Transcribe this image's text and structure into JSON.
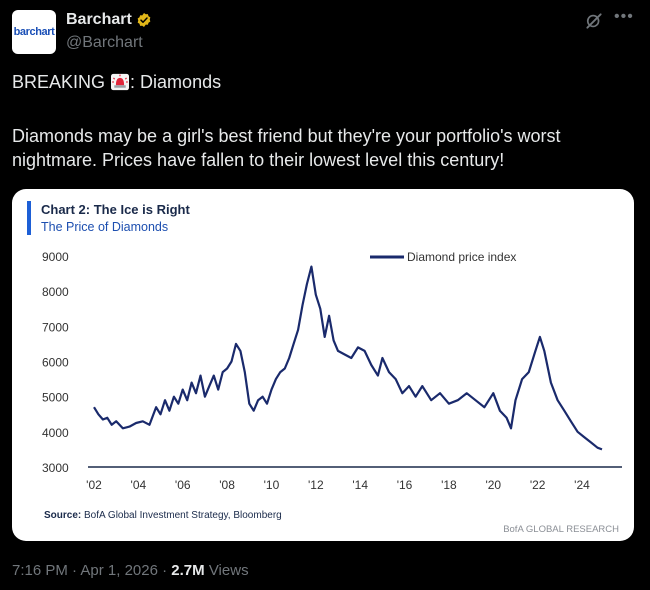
{
  "author": {
    "name": "Barchart",
    "handle": "@Barchart",
    "avatar_text": "barchart",
    "verified": true,
    "verified_color": "#e2b719"
  },
  "post": {
    "line1_prefix": "BREAKING",
    "line1_suffix": ": Diamonds",
    "body": "Diamonds may be a girl's best friend but they're your portfolio's worst nightmare.  Prices have fallen to their lowest level this century!",
    "siren_icon": "rotating-light-emoji"
  },
  "meta": {
    "time": "7:16 PM",
    "date": "Apr 1, 2026",
    "views": "2.7M",
    "views_label": "Views"
  },
  "icons": {
    "grok": "grok-icon",
    "more": "more-icon"
  },
  "chart_data": {
    "type": "line",
    "title": "Chart 2: The Ice is Right",
    "subtitle": "The Price of Diamonds",
    "accent_color": "#1d5fd6",
    "line_color": "#1a2a6c",
    "ylim": [
      3000,
      9000
    ],
    "y_ticks": [
      "9000",
      "8000",
      "7000",
      "6000",
      "5000",
      "4000",
      "3000"
    ],
    "y_tick_values": [
      9000,
      8000,
      7000,
      6000,
      5000,
      4000,
      3000
    ],
    "x_ticks": [
      "'02",
      "'04",
      "'06",
      "'08",
      "'10",
      "'12",
      "'14",
      "'16",
      "'18",
      "'20",
      "'22",
      "'24"
    ],
    "x_tick_values": [
      2002,
      2004,
      2006,
      2008,
      2010,
      2012,
      2014,
      2016,
      2018,
      2020,
      2022,
      2024
    ],
    "xlim": [
      2002,
      2026
    ],
    "source_label": "Source:",
    "source": "BofA Global Investment Strategy, Bloomberg",
    "watermark": "BofA GLOBAL RESEARCH",
    "legend_position": "top-right",
    "series": [
      {
        "name": "Diamond price index",
        "x": [
          2002.0,
          2002.2,
          2002.4,
          2002.6,
          2002.8,
          2003.0,
          2003.3,
          2003.6,
          2003.9,
          2004.2,
          2004.5,
          2004.8,
          2005.0,
          2005.2,
          2005.4,
          2005.6,
          2005.8,
          2006.0,
          2006.2,
          2006.4,
          2006.6,
          2006.8,
          2007.0,
          2007.2,
          2007.4,
          2007.6,
          2007.8,
          2008.0,
          2008.2,
          2008.4,
          2008.6,
          2008.8,
          2009.0,
          2009.2,
          2009.4,
          2009.6,
          2009.8,
          2010.0,
          2010.2,
          2010.4,
          2010.6,
          2010.8,
          2011.0,
          2011.2,
          2011.4,
          2011.6,
          2011.8,
          2012.0,
          2012.2,
          2012.4,
          2012.6,
          2012.8,
          2013.0,
          2013.3,
          2013.6,
          2013.9,
          2014.2,
          2014.5,
          2014.8,
          2015.0,
          2015.3,
          2015.6,
          2015.9,
          2016.2,
          2016.5,
          2016.8,
          2017.2,
          2017.6,
          2018.0,
          2018.4,
          2018.8,
          2019.2,
          2019.6,
          2020.0,
          2020.3,
          2020.6,
          2020.8,
          2021.0,
          2021.3,
          2021.6,
          2021.9,
          2022.1,
          2022.3,
          2022.6,
          2022.9,
          2023.2,
          2023.5,
          2023.8,
          2024.1,
          2024.4,
          2024.7,
          2024.9
        ],
        "values": [
          4700,
          4500,
          4350,
          4400,
          4200,
          4300,
          4100,
          4150,
          4250,
          4300,
          4200,
          4700,
          4500,
          4900,
          4600,
          5000,
          4800,
          5200,
          4900,
          5400,
          5100,
          5600,
          5000,
          5300,
          5600,
          5200,
          5700,
          5800,
          6000,
          6500,
          6300,
          5700,
          4800,
          4600,
          4900,
          5000,
          4800,
          5200,
          5500,
          5700,
          5800,
          6100,
          6500,
          6900,
          7600,
          8200,
          8700,
          7900,
          7500,
          6700,
          7300,
          6600,
          6300,
          6200,
          6100,
          6400,
          6300,
          5900,
          5600,
          6100,
          5700,
          5500,
          5100,
          5300,
          5000,
          5300,
          4900,
          5100,
          4800,
          4900,
          5100,
          4900,
          4700,
          5100,
          4600,
          4400,
          4100,
          4900,
          5500,
          5700,
          6300,
          6700,
          6300,
          5400,
          4900,
          4600,
          4300,
          4000,
          3850,
          3700,
          3550,
          3500
        ]
      }
    ]
  }
}
